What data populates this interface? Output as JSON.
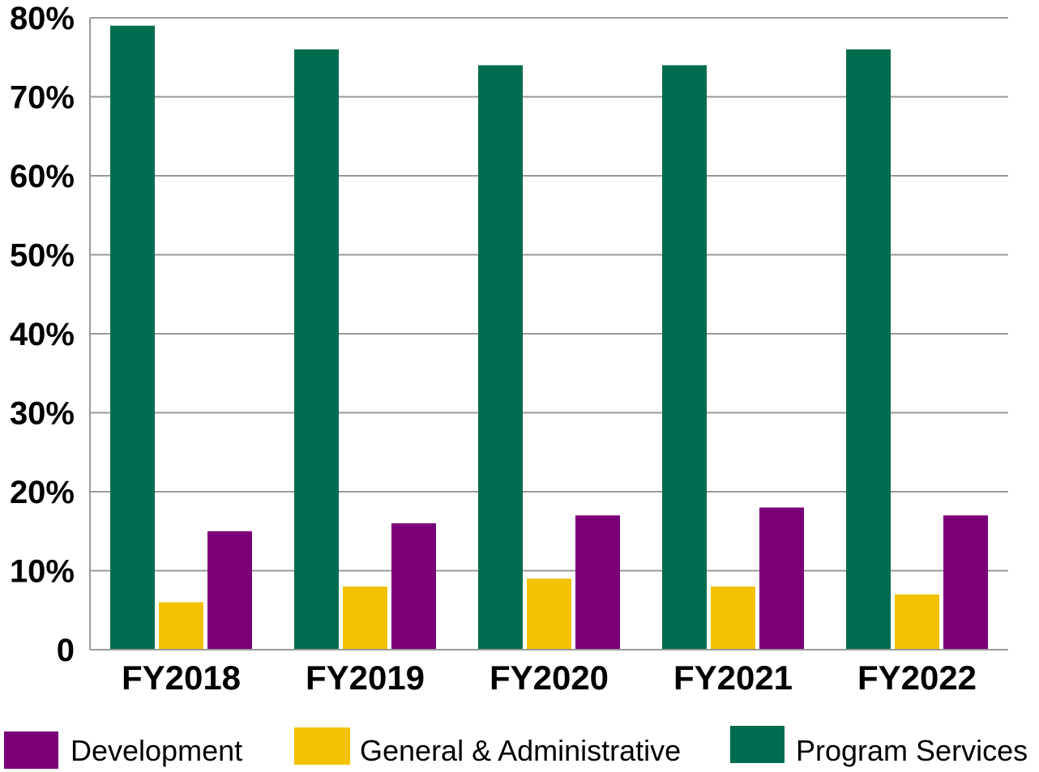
{
  "chart_data": {
    "type": "bar",
    "title": "",
    "xlabel": "",
    "ylabel": "",
    "categories": [
      "FY2018",
      "FY2019",
      "FY2020",
      "FY2021",
      "FY2022"
    ],
    "series": [
      {
        "name": "Program Services",
        "color": "#006c4f",
        "values": [
          79,
          76,
          74,
          74,
          76
        ]
      },
      {
        "name": "General & Administrative",
        "color": "#f2c200",
        "values": [
          6,
          8,
          9,
          8,
          7
        ]
      },
      {
        "name": "Development",
        "color": "#7b0078",
        "values": [
          15,
          16,
          17,
          18,
          17
        ]
      }
    ],
    "ylim": [
      0,
      80
    ],
    "yticks": [
      {
        "value": 0,
        "label": "0"
      },
      {
        "value": 10,
        "label": "10%"
      },
      {
        "value": 20,
        "label": "20%"
      },
      {
        "value": 30,
        "label": "30%"
      },
      {
        "value": 40,
        "label": "40%"
      },
      {
        "value": 50,
        "label": "50%"
      },
      {
        "value": 60,
        "label": "60%"
      },
      {
        "value": 70,
        "label": "70%"
      },
      {
        "value": 80,
        "label": "80%"
      }
    ],
    "grid": true,
    "legend": {
      "position": "bottom",
      "entries": [
        "Development",
        "General & Administrative",
        "Program Services"
      ]
    }
  }
}
